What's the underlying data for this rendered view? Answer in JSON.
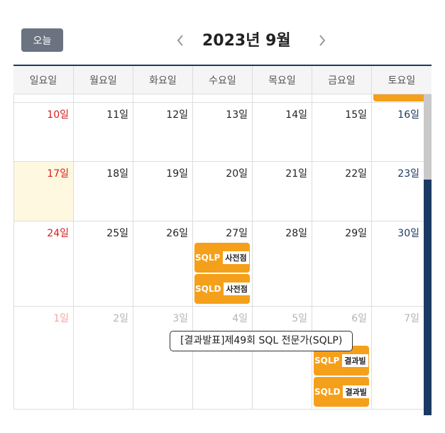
{
  "header": {
    "today_label": "오늘",
    "title": "2023년 9월"
  },
  "weekdays": [
    "일요일",
    "월요일",
    "화요일",
    "수요일",
    "목요일",
    "금요일",
    "토요일"
  ],
  "weeks": [
    {
      "dates": [
        "10일",
        "11일",
        "12일",
        "13일",
        "14일",
        "15일",
        "16일"
      ]
    },
    {
      "dates": [
        "17일",
        "18일",
        "19일",
        "20일",
        "21일",
        "22일",
        "23일"
      ]
    },
    {
      "dates": [
        "24일",
        "25일",
        "26일",
        "27일",
        "28일",
        "29일",
        "30일"
      ]
    },
    {
      "dates": [
        "1일",
        "2일",
        "3일",
        "4일",
        "5일",
        "6일",
        "7일"
      ]
    }
  ],
  "events": {
    "sep27_sqlp": {
      "tag": "SQLP",
      "label": "사전점"
    },
    "sep27_sqld": {
      "tag": "SQLD",
      "label": "사전점"
    },
    "oct6_sqlp": {
      "tag": "SQLP",
      "label": "결과빌"
    },
    "oct6_sqld": {
      "tag": "SQLD",
      "label": "결과빌"
    }
  },
  "tooltip": "[결과발표]제49회 SQL 전문가(SQLP)",
  "colors": {
    "accent_navy": "#1b3a63",
    "event_orange": "#f5a01a",
    "sunday_red": "#d81e1e",
    "today_bg": "#fef8e0",
    "button_grey": "#6b7280"
  }
}
